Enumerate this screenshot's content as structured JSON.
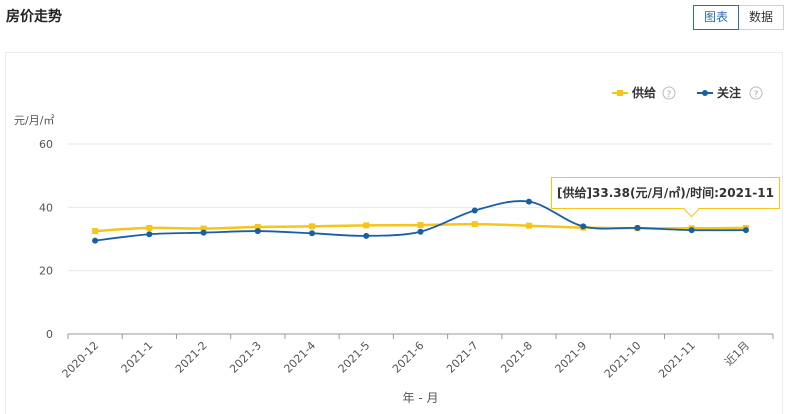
{
  "page": {
    "title": "房价走势"
  },
  "toggle": {
    "chart_label": "图表",
    "data_label": "数据"
  },
  "help_glyph": "?",
  "tooltip": {
    "text": "[供给]33.38(元/月/㎡)/时间:2021-11"
  },
  "colors": {
    "supply": "#f5c518",
    "attention": "#1a5fa3",
    "grid": "#e8e8e8",
    "axis": "#999999"
  },
  "chart_data": {
    "type": "line",
    "title": "房价走势",
    "ylabel": "元/月/㎡",
    "xlabel": "年 - 月",
    "ylim": [
      0,
      60
    ],
    "yticks": [
      0,
      20,
      40,
      60
    ],
    "categories": [
      "2020-12",
      "2021-1",
      "2021-2",
      "2021-3",
      "2021-4",
      "2021-5",
      "2021-6",
      "2021-7",
      "2021-8",
      "2021-9",
      "2021-10",
      "2021-11",
      "近1月"
    ],
    "series": [
      {
        "name": "供给",
        "color": "#f5c518",
        "marker": "square",
        "values": [
          32.5,
          33.5,
          33.3,
          33.8,
          34.0,
          34.3,
          34.4,
          34.7,
          34.2,
          33.6,
          33.4,
          33.38,
          33.5
        ]
      },
      {
        "name": "关注",
        "color": "#1a5fa3",
        "marker": "circle",
        "values": [
          29.5,
          31.5,
          32.0,
          32.5,
          31.8,
          31.0,
          32.3,
          39.0,
          41.8,
          34.0,
          33.5,
          32.8,
          32.8
        ]
      }
    ],
    "legend_position": "top-right",
    "grid": true
  }
}
